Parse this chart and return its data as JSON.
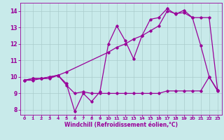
{
  "background_color": "#c8eaea",
  "grid_color": "#aacccc",
  "line_color": "#990099",
  "xlabel": "Windchill (Refroidissement éolien,°C)",
  "xlim": [
    -0.5,
    23.5
  ],
  "ylim": [
    7.7,
    14.5
  ],
  "xticks": [
    0,
    1,
    2,
    3,
    4,
    5,
    6,
    7,
    8,
    9,
    10,
    11,
    12,
    13,
    14,
    15,
    16,
    17,
    18,
    19,
    20,
    21,
    22,
    23
  ],
  "yticks": [
    8,
    9,
    10,
    11,
    12,
    13,
    14
  ],
  "line1_x": [
    0,
    1,
    2,
    3,
    4,
    5,
    6,
    7,
    8,
    9,
    10,
    11,
    12,
    13,
    14,
    15,
    16,
    17,
    18,
    19,
    20,
    21,
    22,
    23
  ],
  "line1_y": [
    9.8,
    9.9,
    9.9,
    10.0,
    10.1,
    9.6,
    7.9,
    9.0,
    8.5,
    9.1,
    12.0,
    13.1,
    12.2,
    11.1,
    12.5,
    13.5,
    13.6,
    14.15,
    13.8,
    14.05,
    13.6,
    11.9,
    10.0,
    9.2
  ],
  "line2_x": [
    0,
    1,
    2,
    3,
    4,
    5,
    6,
    7,
    8,
    9,
    10,
    11,
    12,
    13,
    14,
    15,
    16,
    17,
    18,
    19,
    20,
    21,
    22,
    23
  ],
  "line2_y": [
    9.8,
    9.8,
    9.9,
    9.9,
    10.1,
    9.5,
    9.0,
    9.1,
    9.0,
    9.0,
    9.0,
    9.0,
    9.0,
    9.0,
    9.0,
    9.0,
    9.0,
    9.15,
    9.15,
    9.15,
    9.15,
    9.15,
    10.0,
    9.15
  ],
  "line3_x": [
    0,
    1,
    2,
    3,
    4,
    5,
    10,
    11,
    12,
    13,
    14,
    15,
    16,
    17,
    18,
    19,
    20,
    21,
    22,
    23
  ],
  "line3_y": [
    9.8,
    9.9,
    9.9,
    10.0,
    10.1,
    10.3,
    11.5,
    11.8,
    12.0,
    12.3,
    12.5,
    12.8,
    13.1,
    14.0,
    13.85,
    13.9,
    13.6,
    13.6,
    13.6,
    9.2
  ],
  "marker": "D",
  "markersize": 1.8,
  "linewidth": 0.9
}
